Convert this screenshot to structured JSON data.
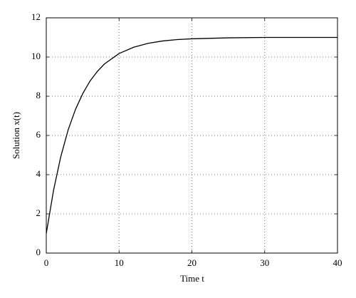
{
  "chart_data": {
    "type": "line",
    "xlabel": "Time t",
    "ylabel": "Solution x(t)",
    "x": [
      0,
      1,
      2,
      3,
      4,
      5,
      6,
      7,
      8,
      10,
      12,
      14,
      16,
      18,
      20,
      25,
      30,
      35,
      40
    ],
    "series": [
      {
        "color": "#000000",
        "values": [
          1,
          3.21,
          4.93,
          6.28,
          7.32,
          8.13,
          8.77,
          9.26,
          9.65,
          10.18,
          10.5,
          10.7,
          10.82,
          10.89,
          10.93,
          10.98,
          11,
          11,
          11
        ]
      }
    ],
    "xlim": [
      0,
      40
    ],
    "xticks": [
      0,
      10,
      20,
      30,
      40
    ],
    "ylim": [
      0,
      12
    ],
    "yticks": [
      0,
      2,
      4,
      6,
      8,
      10,
      12
    ],
    "grid": true
  }
}
